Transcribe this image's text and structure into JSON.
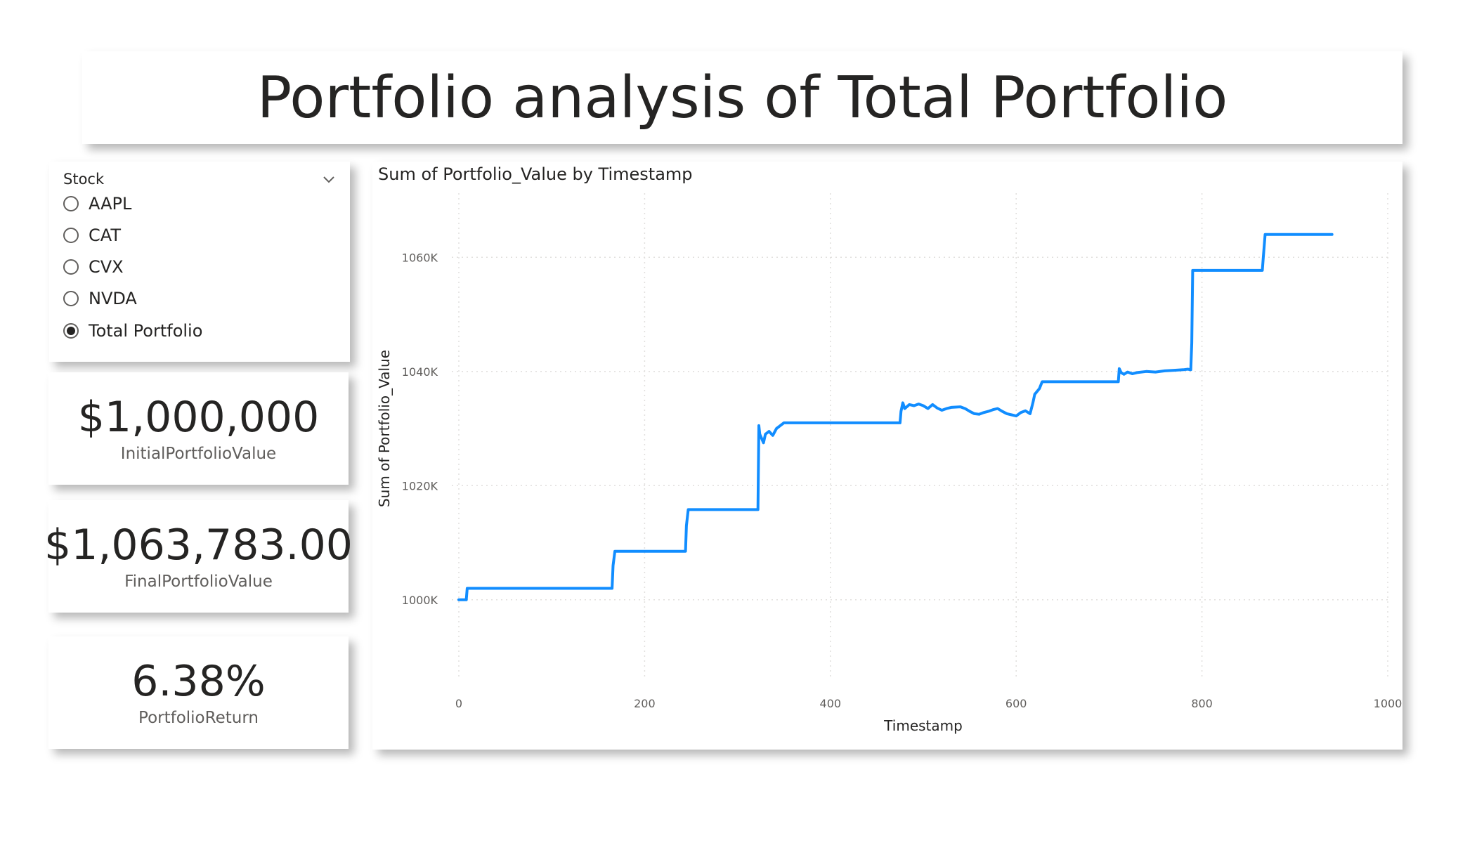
{
  "title": "Portfolio analysis of Total Portfolio",
  "slicer": {
    "title": "Stock",
    "items": [
      {
        "label": "AAPL",
        "checked": false
      },
      {
        "label": "CAT",
        "checked": false
      },
      {
        "label": "CVX",
        "checked": false
      },
      {
        "label": "NVDA",
        "checked": false
      },
      {
        "label": "Total Portfolio",
        "checked": true
      }
    ]
  },
  "kpis": {
    "initial": {
      "value": "$1,000,000",
      "label": "InitialPortfolioValue"
    },
    "final": {
      "value": "$1,063,783.00",
      "label": "FinalPortfolioValue"
    },
    "return": {
      "value": "6.38%",
      "label": "PortfolioReturn"
    }
  },
  "colors": {
    "line": "#118DFF",
    "gridline": "#E1DFDD",
    "card_shadow": "#BEBEBE"
  },
  "chart_data": {
    "type": "line",
    "title": "Sum of Portfolio_Value by Timestamp",
    "xlabel": "Timestamp",
    "ylabel": "Sum of Portfolio_Value",
    "xlim": [
      0,
      1000
    ],
    "ylim": [
      990000,
      1070000
    ],
    "x_ticks": [
      0,
      200,
      400,
      600,
      800,
      1000
    ],
    "x_tick_labels": [
      "0",
      "200",
      "400",
      "600",
      "800",
      "1000"
    ],
    "y_ticks": [
      1000000,
      1020000,
      1040000,
      1060000
    ],
    "y_tick_labels": [
      "1000K",
      "1020K",
      "1040K",
      "1060K"
    ],
    "grid": true,
    "series": [
      {
        "x": [
          0,
          8,
          9,
          165,
          166,
          168,
          244,
          245,
          247,
          322,
          323,
          324,
          328,
          330,
          334,
          338,
          342,
          346,
          350,
          475,
          476,
          478,
          480,
          485,
          490,
          495,
          500,
          505,
          510,
          515,
          520,
          525,
          530,
          540,
          545,
          550,
          555,
          560,
          565,
          570,
          575,
          580,
          585,
          590,
          595,
          600,
          605,
          610,
          615,
          618,
          620,
          625,
          628,
          630,
          632,
          710,
          711,
          713,
          716,
          720,
          725,
          730,
          740,
          750,
          760,
          770,
          780,
          785,
          787,
          788,
          789,
          790,
          865,
          866,
          868,
          940
        ],
        "y": [
          1000000,
          1000000,
          1002000,
          1002000,
          1006000,
          1008500,
          1008500,
          1013000,
          1015800,
          1015800,
          1030500,
          1029000,
          1027500,
          1029000,
          1029500,
          1028800,
          1030000,
          1030500,
          1031000,
          1031000,
          1033000,
          1034500,
          1033500,
          1034200,
          1034000,
          1034300,
          1034000,
          1033500,
          1034200,
          1033600,
          1033200,
          1033500,
          1033700,
          1033800,
          1033500,
          1033000,
          1032600,
          1032500,
          1032800,
          1033000,
          1033300,
          1033500,
          1033000,
          1032600,
          1032400,
          1032200,
          1032800,
          1033100,
          1032600,
          1034500,
          1036000,
          1037000,
          1038200,
          1038200,
          1038200,
          1038200,
          1040500,
          1039800,
          1039500,
          1039900,
          1039600,
          1039800,
          1040000,
          1039900,
          1040100,
          1040200,
          1040300,
          1040400,
          1040300,
          1040300,
          1045000,
          1057700,
          1057700,
          1060000,
          1064000,
          1064000
        ]
      }
    ]
  }
}
